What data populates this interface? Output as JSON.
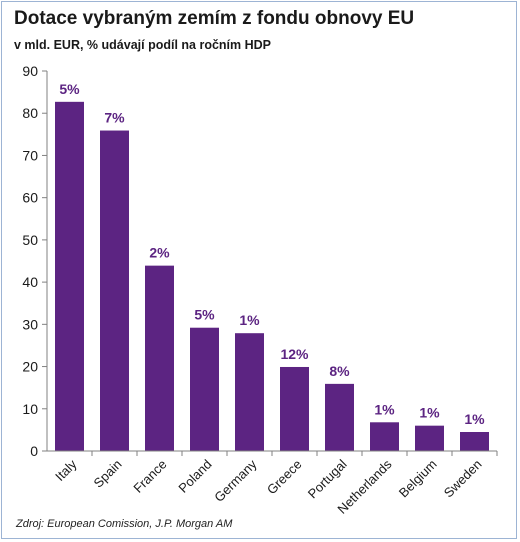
{
  "title": "Dotace vybraným zemím z fondu obnovy EU",
  "subtitle": "v mld. EUR, % udávají podíl na ročním HDP",
  "source": "Zdroj: European Comission, J.P. Morgan AM",
  "colors": {
    "bar": "#5c2482",
    "label": "#5c2482",
    "axis": "#808080",
    "text": "#1a1a1a"
  },
  "chart_data": {
    "type": "bar",
    "categories": [
      "Italy",
      "Spain",
      "France",
      "Poland",
      "Germany",
      "Greece",
      "Portugal",
      "Netherlands",
      "Belgium",
      "Sweden"
    ],
    "values": [
      82.7,
      75.9,
      43.9,
      29.2,
      27.9,
      19.9,
      15.9,
      6.8,
      6.0,
      4.5
    ],
    "data_labels": [
      "5%",
      "7%",
      "2%",
      "5%",
      "1%",
      "12%",
      "8%",
      "1%",
      "1%",
      "1%"
    ],
    "ylim": [
      0,
      90
    ],
    "yticks": [
      0,
      10,
      20,
      30,
      40,
      50,
      60,
      70,
      80,
      90
    ],
    "grid": false,
    "legend": "none"
  }
}
